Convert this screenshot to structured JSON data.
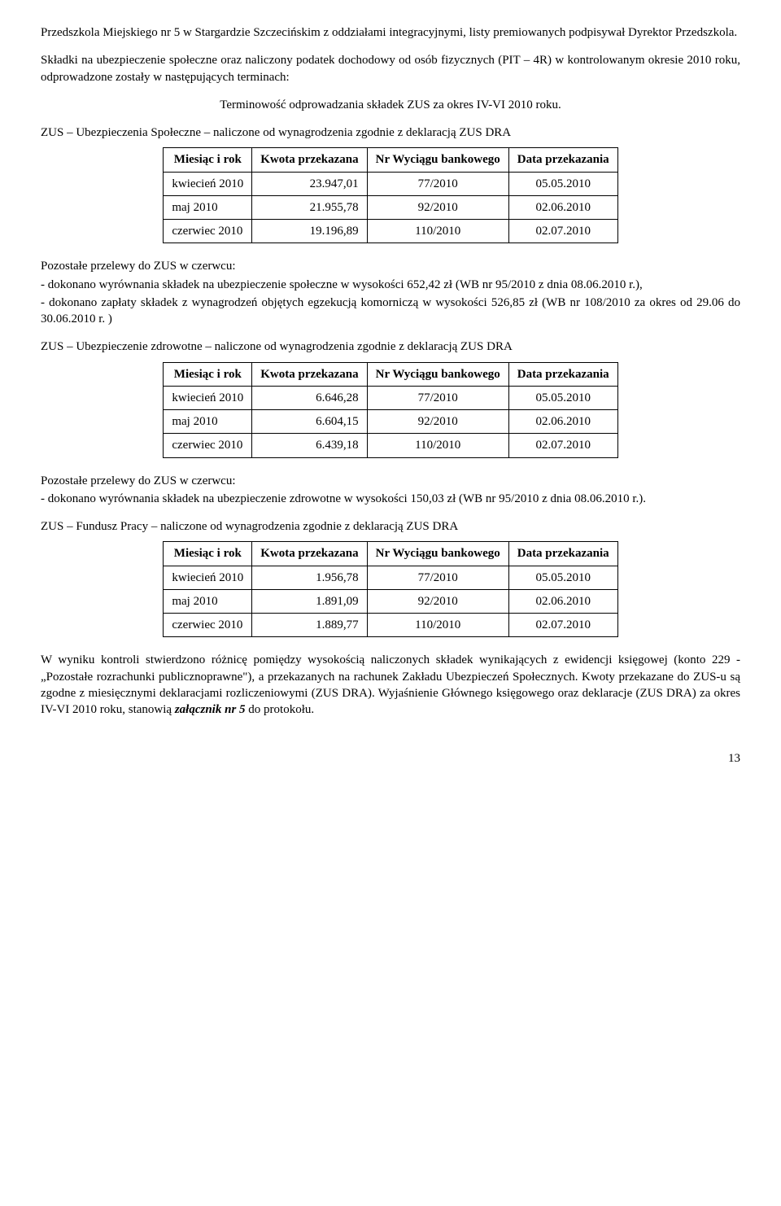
{
  "intro_p1": "Przedszkola Miejskiego nr 5 w Stargardzie Szczecińskim z oddziałami integracyjnymi, listy premiowanych podpisywał Dyrektor Przedszkola.",
  "intro_p2": "Składki na ubezpieczenie społeczne oraz naliczony podatek dochodowy od osób fizycznych (PIT – 4R) w kontrolowanym okresie 2010 roku, odprowadzone zostały w następujących terminach:",
  "term_heading": "Terminowość odprowadzania składek ZUS za okres IV-VI 2010 roku.",
  "sec1_title": "ZUS – Ubezpieczenia Społeczne – naliczone od  wynagrodzenia zgodnie z deklaracją ZUS DRA",
  "tbl_headers": {
    "c1": "Miesiąc i rok",
    "c2": "Kwota przekazana",
    "c3": "Nr Wyciągu bankowego",
    "c4": "Data przekazania"
  },
  "tbl1": {
    "rows": [
      {
        "m": "kwiecień 2010",
        "k": "23.947,01",
        "n": "77/2010",
        "d": "05.05.2010"
      },
      {
        "m": "maj 2010",
        "k": "21.955,78",
        "n": "92/2010",
        "d": "02.06.2010"
      },
      {
        "m": "czerwiec 2010",
        "k": "19.196,89",
        "n": "110/2010",
        "d": "02.07.2010"
      }
    ]
  },
  "after1_l1": "Pozostałe przelewy do ZUS w czerwcu:",
  "after1_l2": "- dokonano wyrównania składek na ubezpieczenie społeczne w wysokości 652,42 zł (WB nr 95/2010 z dnia 08.06.2010 r.),",
  "after1_l3": "- dokonano zapłaty składek z wynagrodzeń objętych egzekucją komorniczą w wysokości 526,85 zł (WB nr 108/2010 za okres od 29.06 do 30.06.2010 r. )",
  "sec2_title": "ZUS – Ubezpieczenie zdrowotne – naliczone od  wynagrodzenia zgodnie z deklaracją ZUS DRA",
  "tbl2": {
    "rows": [
      {
        "m": "kwiecień 2010",
        "k": "6.646,28",
        "n": "77/2010",
        "d": "05.05.2010"
      },
      {
        "m": "maj 2010",
        "k": "6.604,15",
        "n": "92/2010",
        "d": "02.06.2010"
      },
      {
        "m": "czerwiec 2010",
        "k": "6.439,18",
        "n": "110/2010",
        "d": "02.07.2010"
      }
    ]
  },
  "after2_l1": "Pozostałe przelewy do ZUS w czerwcu:",
  "after2_l2": "- dokonano wyrównania składek na ubezpieczenie zdrowotne w wysokości 150,03 zł (WB nr  95/2010 z dnia 08.06.2010 r.).",
  "sec3_title": "ZUS – Fundusz Pracy – naliczone od  wynagrodzenia zgodnie z deklaracją ZUS DRA",
  "tbl3": {
    "rows": [
      {
        "m": "kwiecień 2010",
        "k": "1.956,78",
        "n": "77/2010",
        "d": "05.05.2010"
      },
      {
        "m": "maj 2010",
        "k": "1.891,09",
        "n": "92/2010",
        "d": "02.06.2010"
      },
      {
        "m": "czerwiec 2010",
        "k": "1.889,77",
        "n": "110/2010",
        "d": "02.07.2010"
      }
    ]
  },
  "final_p_pre": "W wyniku kontroli stwierdzono różnicę pomiędzy wysokością naliczonych składek wynikających z ewidencji księgowej (konto 229 - „Pozostałe rozrachunki publicznoprawne\"), a przekazanych na rachunek Zakładu Ubezpieczeń Społecznych. Kwoty przekazane do ZUS-u są zgodne z miesięcznymi deklaracjami rozliczeniowymi (ZUS DRA). Wyjaśnienie Głównego księgowego oraz deklaracje (ZUS DRA) za okres IV-VI 2010 roku, stanowią ",
  "final_p_bold": "załącznik nr  5",
  "final_p_post": " do protokołu.",
  "page_number": "13"
}
